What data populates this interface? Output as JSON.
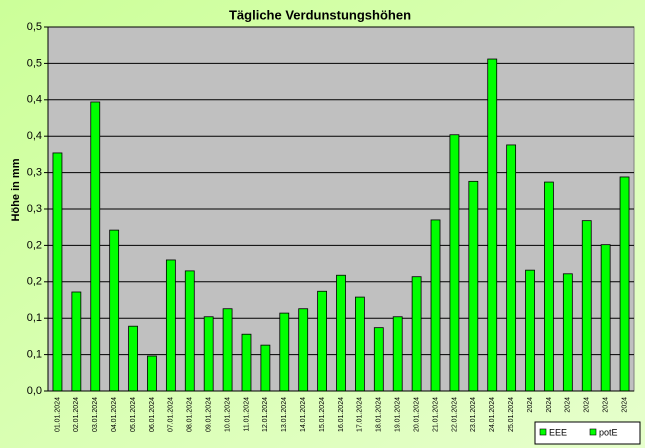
{
  "chart_data": {
    "type": "bar",
    "title": "Tägliche Verdunstungshöhen",
    "y_label": "Höhe in mm",
    "categories": [
      "01.01.2024",
      "02.01.2024",
      "03.01.2024",
      "04.01.2024",
      "05.01.2024",
      "06.01.2024",
      "07.01.2024",
      "08.01.2024",
      "09.01.2024",
      "10.01.2024",
      "11.01.2024",
      "12.01.2024",
      "13.01.2024",
      "14.01.2024",
      "15.01.2024",
      "16.01.2024",
      "17.01.2024",
      "18.01.2024",
      "19.01.2024",
      "20.01.2024",
      "21.01.2024",
      "22.01.2024",
      "23.01.2024",
      "24.01.2024",
      "25.01.2024",
      "2024",
      "2024",
      "2024",
      "2024",
      "2024",
      "2024"
    ],
    "series": [
      {
        "name": "EEE",
        "color": "#00ff00",
        "values": [
          null,
          null,
          null,
          null,
          null,
          null,
          null,
          null,
          null,
          null,
          null,
          null,
          null,
          null,
          null,
          null,
          null,
          null,
          null,
          null,
          null,
          null,
          null,
          null,
          null,
          null,
          null,
          null,
          null,
          null,
          null
        ]
      },
      {
        "name": "potE",
        "color": "#00ff00",
        "values": [
          0.327,
          0.136,
          0.397,
          0.221,
          0.089,
          0.048,
          0.18,
          0.165,
          0.102,
          0.113,
          0.078,
          0.063,
          0.107,
          0.113,
          0.137,
          0.159,
          0.129,
          0.087,
          0.102,
          0.157,
          0.235,
          0.352,
          0.288,
          0.456,
          0.338,
          0.166,
          0.287,
          0.161,
          0.234,
          0.201,
          0.294
        ]
      }
    ],
    "ylim": [
      0,
      0.5
    ],
    "yticks": [
      {
        "value": 0,
        "label": "0,0"
      },
      {
        "value": 0.05,
        "label": "0,1"
      },
      {
        "value": 0.1,
        "label": "0,1"
      },
      {
        "value": 0.15,
        "label": "0,2"
      },
      {
        "value": 0.2,
        "label": "0,2"
      },
      {
        "value": 0.25,
        "label": "0,3"
      },
      {
        "value": 0.3,
        "label": "0,3"
      },
      {
        "value": 0.35,
        "label": "0,4"
      },
      {
        "value": 0.4,
        "label": "0,4"
      },
      {
        "value": 0.45,
        "label": "0,5"
      },
      {
        "value": 0.5,
        "label": "0,5"
      }
    ],
    "grid": true
  }
}
